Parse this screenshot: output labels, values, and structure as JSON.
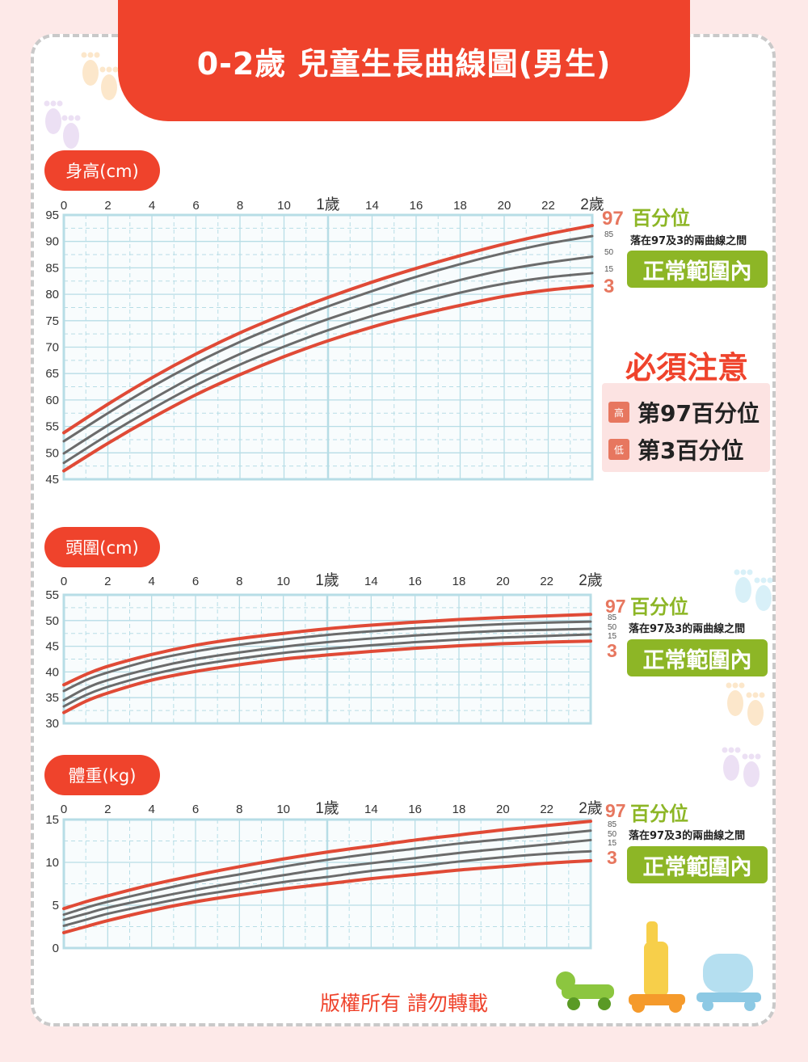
{
  "title": "0-2歲 兒童生長曲線圖(男生)",
  "colors": {
    "accent": "#ef432c",
    "curve_outer": "#e04a36",
    "curve_inner": "#6b6b6b",
    "grid": "#b7dde6",
    "green": "#8db626"
  },
  "legend": {
    "pct_title": "百分位",
    "desc": "落在97及3的兩曲線之間",
    "badge": "正常範圍內",
    "pct_97": "97",
    "pct_85": "85",
    "pct_50": "50",
    "pct_15": "15",
    "pct_3": "3"
  },
  "caution": {
    "title": "必須注意",
    "high_tag": "高",
    "high_text": "第97百分位",
    "low_tag": "低",
    "low_text": "第3百分位"
  },
  "copyright": "版權所有  請勿轉載",
  "chart_data": [
    {
      "type": "line",
      "title": "身高(cm)",
      "x_ticks": [
        "0",
        "2",
        "4",
        "6",
        "8",
        "10",
        "1歲",
        "14",
        "16",
        "18",
        "20",
        "22",
        "2歲"
      ],
      "y_ticks": [
        "95",
        "90",
        "85",
        "80",
        "75",
        "70",
        "65",
        "60",
        "55",
        "50",
        "45"
      ],
      "xlim": [
        0,
        24
      ],
      "ylim": [
        45,
        95
      ],
      "x": [
        0,
        2,
        4,
        6,
        8,
        10,
        12,
        14,
        16,
        18,
        20,
        22,
        24
      ],
      "series": [
        {
          "name": "97",
          "values": [
            53.8,
            59.2,
            64.2,
            68.7,
            72.7,
            76.2,
            79.4,
            82.3,
            84.9,
            87.3,
            89.5,
            91.4,
            93.0
          ]
        },
        {
          "name": "85",
          "values": [
            52.2,
            57.5,
            62.5,
            67.0,
            71.0,
            74.5,
            77.7,
            80.6,
            83.3,
            85.7,
            87.8,
            89.6,
            91.0
          ]
        },
        {
          "name": "50",
          "values": [
            49.9,
            55.2,
            60.1,
            64.7,
            68.7,
            72.2,
            75.3,
            78.0,
            80.5,
            82.7,
            84.6,
            86.0,
            87.1
          ]
        },
        {
          "name": "15",
          "values": [
            48.1,
            53.4,
            58.3,
            62.8,
            66.7,
            70.1,
            73.2,
            75.9,
            78.2,
            80.3,
            82.0,
            83.2,
            84.0
          ]
        },
        {
          "name": "3",
          "values": [
            46.6,
            51.8,
            56.6,
            61.0,
            64.8,
            68.2,
            71.2,
            73.8,
            76.0,
            77.9,
            79.6,
            80.8,
            81.6
          ]
        }
      ]
    },
    {
      "type": "line",
      "title": "頭圍(cm)",
      "x_ticks": [
        "0",
        "2",
        "4",
        "6",
        "8",
        "10",
        "1歲",
        "14",
        "16",
        "18",
        "20",
        "22",
        "2歲"
      ],
      "y_ticks": [
        "55",
        "50",
        "45",
        "40",
        "35",
        "30"
      ],
      "xlim": [
        0,
        24
      ],
      "ylim": [
        30,
        55
      ],
      "x": [
        0,
        1,
        2,
        4,
        6,
        8,
        10,
        12,
        14,
        16,
        18,
        20,
        22,
        24
      ],
      "series": [
        {
          "name": "97",
          "values": [
            37.5,
            39.5,
            41.1,
            43.4,
            45.2,
            46.5,
            47.5,
            48.4,
            49.1,
            49.7,
            50.2,
            50.6,
            50.9,
            51.2
          ]
        },
        {
          "name": "85",
          "values": [
            36.3,
            38.4,
            39.9,
            42.3,
            44.0,
            45.3,
            46.3,
            47.2,
            47.9,
            48.5,
            48.9,
            49.3,
            49.6,
            49.8
          ]
        },
        {
          "name": "50",
          "values": [
            34.5,
            36.8,
            38.4,
            40.7,
            42.5,
            43.8,
            44.9,
            45.8,
            46.5,
            47.1,
            47.6,
            48.0,
            48.2,
            48.4
          ]
        },
        {
          "name": "15",
          "values": [
            33.3,
            35.5,
            37.1,
            39.5,
            41.3,
            42.6,
            43.7,
            44.5,
            45.2,
            45.8,
            46.3,
            46.7,
            47.0,
            47.3
          ]
        },
        {
          "name": "3",
          "values": [
            32.1,
            34.3,
            35.9,
            38.4,
            40.1,
            41.4,
            42.5,
            43.3,
            44.0,
            44.6,
            45.1,
            45.5,
            45.8,
            46.0
          ]
        }
      ]
    },
    {
      "type": "line",
      "title": "體重(kg)",
      "x_ticks": [
        "0",
        "2",
        "4",
        "6",
        "8",
        "10",
        "1歲",
        "14",
        "16",
        "18",
        "20",
        "22",
        "2歲"
      ],
      "y_ticks": [
        "15",
        "10",
        "5",
        "0"
      ],
      "xlim": [
        0,
        24
      ],
      "ylim": [
        0,
        15
      ],
      "x": [
        0,
        1,
        2,
        4,
        6,
        8,
        10,
        12,
        14,
        16,
        18,
        20,
        22,
        24
      ],
      "series": [
        {
          "name": "97",
          "values": [
            4.6,
            5.4,
            6.1,
            7.4,
            8.5,
            9.5,
            10.4,
            11.2,
            11.9,
            12.6,
            13.2,
            13.8,
            14.3,
            14.8
          ]
        },
        {
          "name": "85",
          "values": [
            3.9,
            4.7,
            5.4,
            6.6,
            7.7,
            8.6,
            9.5,
            10.3,
            11.0,
            11.6,
            12.2,
            12.7,
            13.2,
            13.7
          ]
        },
        {
          "name": "50",
          "values": [
            3.3,
            4.0,
            4.7,
            5.8,
            6.8,
            7.7,
            8.5,
            9.3,
            9.9,
            10.5,
            11.1,
            11.6,
            12.1,
            12.6
          ]
        },
        {
          "name": "15",
          "values": [
            2.6,
            3.3,
            4.0,
            5.1,
            6.1,
            6.9,
            7.7,
            8.3,
            9.0,
            9.5,
            10.1,
            10.6,
            11.0,
            11.3
          ]
        },
        {
          "name": "3",
          "values": [
            1.8,
            2.5,
            3.2,
            4.4,
            5.4,
            6.2,
            6.9,
            7.5,
            8.1,
            8.6,
            9.1,
            9.5,
            9.9,
            10.2
          ]
        }
      ]
    }
  ]
}
